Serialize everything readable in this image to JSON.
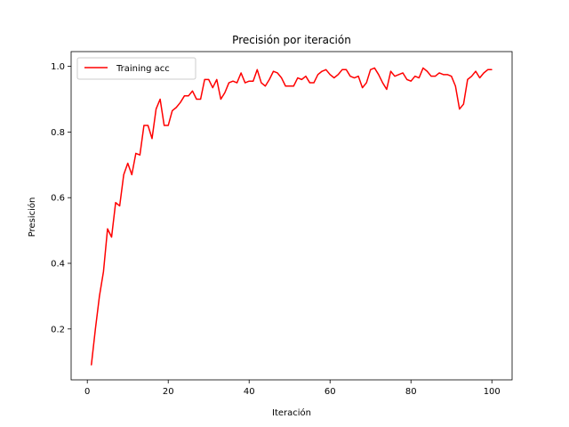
{
  "chart_data": {
    "type": "line",
    "title": "Precisión por iteración",
    "xlabel": "Iteración",
    "ylabel": "Presición",
    "xlim": [
      -4,
      105
    ],
    "ylim": [
      0.045,
      1.045
    ],
    "x_ticks": [
      0,
      20,
      40,
      60,
      80,
      100
    ],
    "y_ticks": [
      0.2,
      0.4,
      0.6,
      0.8,
      1.0
    ],
    "x_tick_labels": [
      "0",
      "20",
      "40",
      "60",
      "80",
      "100"
    ],
    "y_tick_labels": [
      "0.2",
      "0.4",
      "0.6",
      "0.8",
      "1.0"
    ],
    "grid": false,
    "legend": {
      "position": "upper-left"
    },
    "series": [
      {
        "name": "Training acc",
        "color": "#ff0000",
        "x": [
          1,
          2,
          3,
          4,
          5,
          6,
          7,
          8,
          9,
          10,
          11,
          12,
          13,
          14,
          15,
          16,
          17,
          18,
          19,
          20,
          21,
          22,
          23,
          24,
          25,
          26,
          27,
          28,
          29,
          30,
          31,
          32,
          33,
          34,
          35,
          36,
          37,
          38,
          39,
          40,
          41,
          42,
          43,
          44,
          45,
          46,
          47,
          48,
          49,
          50,
          51,
          52,
          53,
          54,
          55,
          56,
          57,
          58,
          59,
          60,
          61,
          62,
          63,
          64,
          65,
          66,
          67,
          68,
          69,
          70,
          71,
          72,
          73,
          74,
          75,
          76,
          77,
          78,
          79,
          80,
          81,
          82,
          83,
          84,
          85,
          86,
          87,
          88,
          89,
          90,
          91,
          92,
          93,
          94,
          95,
          96,
          97,
          98,
          99,
          100
        ],
        "y": [
          0.09,
          0.2,
          0.3,
          0.375,
          0.505,
          0.48,
          0.585,
          0.575,
          0.67,
          0.705,
          0.67,
          0.735,
          0.73,
          0.82,
          0.82,
          0.78,
          0.87,
          0.9,
          0.82,
          0.82,
          0.865,
          0.875,
          0.89,
          0.91,
          0.91,
          0.925,
          0.9,
          0.9,
          0.96,
          0.96,
          0.935,
          0.96,
          0.9,
          0.92,
          0.95,
          0.955,
          0.95,
          0.98,
          0.95,
          0.955,
          0.955,
          0.99,
          0.95,
          0.94,
          0.96,
          0.985,
          0.98,
          0.965,
          0.94,
          0.94,
          0.94,
          0.965,
          0.96,
          0.97,
          0.95,
          0.95,
          0.975,
          0.985,
          0.99,
          0.975,
          0.965,
          0.975,
          0.99,
          0.99,
          0.97,
          0.965,
          0.97,
          0.935,
          0.95,
          0.99,
          0.995,
          0.975,
          0.95,
          0.93,
          0.985,
          0.97,
          0.975,
          0.98,
          0.96,
          0.955,
          0.97,
          0.965,
          0.995,
          0.985,
          0.97,
          0.97,
          0.98,
          0.975,
          0.975,
          0.97,
          0.94,
          0.87,
          0.885,
          0.96,
          0.97,
          0.985,
          0.965,
          0.98,
          0.99,
          0.99
        ]
      }
    ]
  }
}
